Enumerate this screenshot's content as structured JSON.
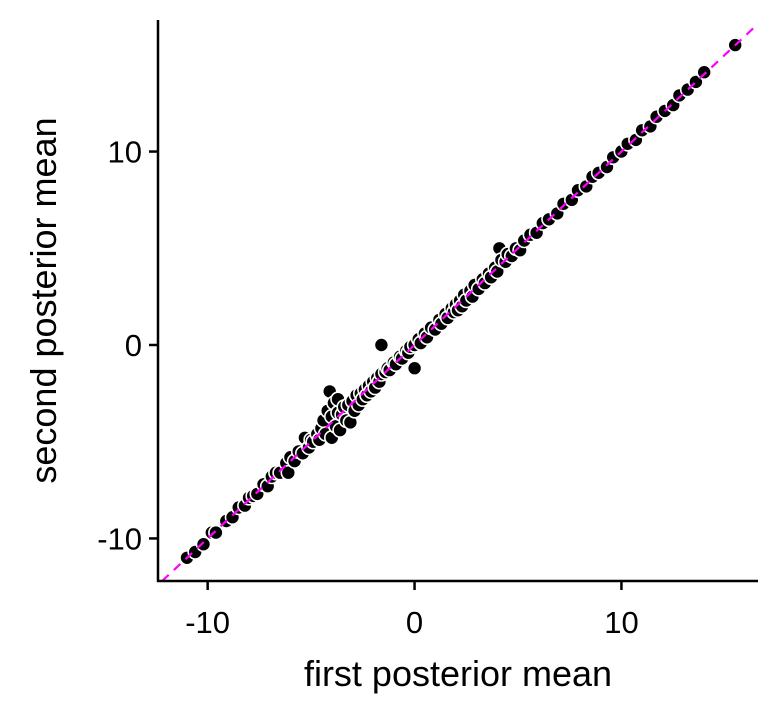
{
  "chart_data": {
    "type": "scatter",
    "title": "",
    "xlabel": "first posterior mean",
    "ylabel": "second posterior mean",
    "xlim": [
      -12.4,
      16.6
    ],
    "ylim": [
      -12.2,
      16.8
    ],
    "xticks": [
      -10,
      0,
      10
    ],
    "yticks": [
      -10,
      0,
      10
    ],
    "xtick_labels": [
      "-10",
      "0",
      "10"
    ],
    "ytick_labels": [
      "-10",
      "0",
      "10"
    ],
    "grid": false,
    "legend": "none",
    "reference_line": {
      "style": "dashed",
      "slope": 1,
      "intercept": 0,
      "color": "#ff00ff"
    },
    "point_fill": "#000000",
    "point_edge": "#ffffff",
    "series": [
      {
        "points": [
          [
            -11.0,
            -11.0
          ],
          [
            -10.6,
            -10.7
          ],
          [
            -10.2,
            -10.3
          ],
          [
            -9.8,
            -9.7
          ],
          [
            -9.6,
            -9.7
          ],
          [
            -9.1,
            -9.1
          ],
          [
            -8.8,
            -8.9
          ],
          [
            -8.5,
            -8.4
          ],
          [
            -8.2,
            -8.3
          ],
          [
            -8.0,
            -7.9
          ],
          [
            -7.8,
            -7.8
          ],
          [
            -7.6,
            -7.7
          ],
          [
            -7.3,
            -7.2
          ],
          [
            -7.1,
            -7.3
          ],
          [
            -6.9,
            -6.8
          ],
          [
            -6.7,
            -6.6
          ],
          [
            -6.5,
            -6.6
          ],
          [
            -6.2,
            -6.1
          ],
          [
            -6.1,
            -6.6
          ],
          [
            -6.0,
            -5.8
          ],
          [
            -5.8,
            -6.0
          ],
          [
            -5.6,
            -5.5
          ],
          [
            -5.4,
            -5.6
          ],
          [
            -5.3,
            -4.8
          ],
          [
            -5.1,
            -5.3
          ],
          [
            -5.0,
            -4.9
          ],
          [
            -4.9,
            -5.0
          ],
          [
            -4.7,
            -4.6
          ],
          [
            -4.6,
            -4.9
          ],
          [
            -4.5,
            -4.3
          ],
          [
            -4.4,
            -3.9
          ],
          [
            -4.3,
            -4.6
          ],
          [
            -4.2,
            -3.4
          ],
          [
            -4.1,
            -2.4
          ],
          [
            -4.0,
            -4.8
          ],
          [
            -4.0,
            -3.7
          ],
          [
            -3.9,
            -3.0
          ],
          [
            -3.8,
            -4.2
          ],
          [
            -3.7,
            -3.5
          ],
          [
            -3.7,
            -2.8
          ],
          [
            -3.6,
            -4.4
          ],
          [
            -3.5,
            -3.6
          ],
          [
            -3.4,
            -3.2
          ],
          [
            -3.3,
            -3.9
          ],
          [
            -3.2,
            -3.1
          ],
          [
            -3.1,
            -4.0
          ],
          [
            -3.0,
            -2.9
          ],
          [
            -2.9,
            -3.4
          ],
          [
            -2.8,
            -2.6
          ],
          [
            -2.7,
            -3.1
          ],
          [
            -2.6,
            -2.5
          ],
          [
            -2.5,
            -2.8
          ],
          [
            -2.4,
            -2.3
          ],
          [
            -2.3,
            -2.6
          ],
          [
            -2.2,
            -2.1
          ],
          [
            -2.1,
            -2.4
          ],
          [
            -2.0,
            -1.9
          ],
          [
            -1.9,
            -2.2
          ],
          [
            -1.8,
            -1.7
          ],
          [
            -1.7,
            -1.9
          ],
          [
            -1.6,
            -1.5
          ],
          [
            -1.6,
            0.0
          ],
          [
            -1.4,
            -1.4
          ],
          [
            -1.3,
            -1.2
          ],
          [
            -1.2,
            -1.3
          ],
          [
            -1.0,
            -0.9
          ],
          [
            -0.9,
            -1.0
          ],
          [
            -0.7,
            -0.6
          ],
          [
            -0.6,
            -0.7
          ],
          [
            -0.4,
            -0.3
          ],
          [
            -0.3,
            -0.4
          ],
          [
            -0.2,
            -0.1
          ],
          [
            0.0,
            0.0
          ],
          [
            0.0,
            -1.2
          ],
          [
            0.2,
            0.3
          ],
          [
            0.3,
            0.1
          ],
          [
            0.5,
            0.6
          ],
          [
            0.6,
            0.4
          ],
          [
            0.8,
            0.9
          ],
          [
            1.0,
            0.8
          ],
          [
            1.2,
            1.3
          ],
          [
            1.3,
            1.1
          ],
          [
            1.5,
            1.6
          ],
          [
            1.6,
            1.4
          ],
          [
            1.8,
            1.9
          ],
          [
            1.9,
            1.7
          ],
          [
            2.0,
            2.1
          ],
          [
            2.1,
            1.8
          ],
          [
            2.2,
            2.3
          ],
          [
            2.3,
            2.0
          ],
          [
            2.4,
            2.6
          ],
          [
            2.5,
            2.3
          ],
          [
            2.7,
            2.8
          ],
          [
            2.8,
            2.5
          ],
          [
            2.9,
            3.1
          ],
          [
            3.1,
            2.9
          ],
          [
            3.3,
            3.4
          ],
          [
            3.4,
            3.2
          ],
          [
            3.6,
            3.7
          ],
          [
            3.7,
            3.5
          ],
          [
            3.9,
            4.0
          ],
          [
            4.0,
            3.8
          ],
          [
            4.1,
            5.0
          ],
          [
            4.2,
            4.4
          ],
          [
            4.4,
            4.3
          ],
          [
            4.5,
            4.7
          ],
          [
            4.7,
            4.6
          ],
          [
            4.9,
            5.0
          ],
          [
            5.1,
            4.9
          ],
          [
            5.3,
            5.4
          ],
          [
            5.6,
            5.7
          ],
          [
            5.9,
            5.8
          ],
          [
            6.2,
            6.3
          ],
          [
            6.5,
            6.5
          ],
          [
            6.9,
            6.8
          ],
          [
            7.2,
            7.3
          ],
          [
            7.6,
            7.5
          ],
          [
            7.9,
            8.0
          ],
          [
            8.3,
            8.2
          ],
          [
            8.6,
            8.7
          ],
          [
            8.9,
            8.9
          ],
          [
            9.3,
            9.2
          ],
          [
            9.6,
            9.7
          ],
          [
            10.0,
            10.0
          ],
          [
            10.3,
            10.4
          ],
          [
            10.7,
            10.6
          ],
          [
            11.0,
            11.1
          ],
          [
            11.4,
            11.3
          ],
          [
            11.7,
            11.8
          ],
          [
            12.1,
            12.1
          ],
          [
            12.5,
            12.4
          ],
          [
            12.8,
            12.9
          ],
          [
            13.2,
            13.2
          ],
          [
            13.6,
            13.6
          ],
          [
            14.0,
            14.1
          ],
          [
            15.5,
            15.5
          ]
        ]
      }
    ]
  }
}
